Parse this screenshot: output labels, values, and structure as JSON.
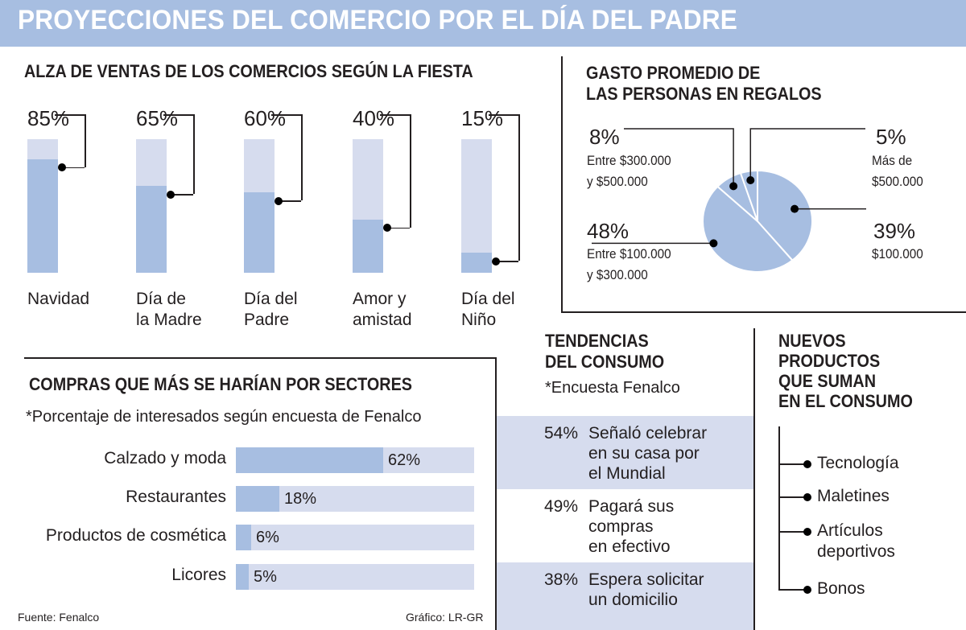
{
  "title": "PROYECCIONES DEL COMERCIO POR EL DÍA DEL PADRE",
  "colors": {
    "bar_light": "#d6dcee",
    "bar_dark": "#a7bee1",
    "title_bg": "#a7bee1",
    "text": "#231f20"
  },
  "chart_data": [
    {
      "type": "bar",
      "title": "ALZA DE VENTAS DE LOS COMERCIOS SEGÚN LA FIESTA",
      "categories": [
        "Navidad",
        "Día de la Madre",
        "Día del Padre",
        "Amor y amistad",
        "Día del Niño"
      ],
      "category_lines": [
        [
          "Navidad"
        ],
        [
          "Día de",
          "la Madre"
        ],
        [
          "Día del",
          "Padre"
        ],
        [
          "Amor y",
          "amistad"
        ],
        [
          "Día del",
          "Niño"
        ]
      ],
      "values": [
        85,
        65,
        60,
        40,
        15
      ],
      "labels": [
        "85%",
        "65%",
        "60%",
        "40%",
        "15%"
      ],
      "unit": "%",
      "ylim": [
        0,
        100
      ]
    },
    {
      "type": "pie",
      "title": "GASTO PROMEDIO DE LAS PERSONAS EN REGALOS",
      "title_lines": [
        "GASTO PROMEDIO DE",
        "LAS PERSONAS EN REGALOS"
      ],
      "slices": [
        {
          "value": 39,
          "pct": "39%",
          "desc_lines": [
            "$100.000"
          ]
        },
        {
          "value": 48,
          "pct": "48%",
          "desc_lines": [
            "Entre $100.000",
            "y $300.000"
          ]
        },
        {
          "value": 8,
          "pct": "8%",
          "desc_lines": [
            "Entre $300.000",
            "y $500.000"
          ]
        },
        {
          "value": 5,
          "pct": "5%",
          "desc_lines": [
            "Más de",
            "$500.000"
          ]
        }
      ]
    },
    {
      "type": "bar",
      "orientation": "horizontal",
      "title": "COMPRAS QUE MÁS SE HARÍAN POR SECTORES",
      "subtitle": "*Porcentaje de interesados según encuesta de Fenalco",
      "categories": [
        "Calzado y moda",
        "Restaurantes",
        "Productos de cosmética",
        "Licores"
      ],
      "values": [
        62,
        18,
        6,
        5
      ],
      "labels": [
        "62%",
        "18%",
        "6%",
        "5%"
      ],
      "xlim": [
        0,
        100
      ]
    }
  ],
  "trends": {
    "title_lines": [
      "TENDENCIAS",
      "DEL CONSUMO"
    ],
    "subtitle": "*Encuesta Fenalco",
    "items": [
      {
        "pct": "54%",
        "lines": [
          "Señaló celebrar",
          "en su casa por",
          "el Mundial"
        ]
      },
      {
        "pct": "49%",
        "lines": [
          "Pagará sus",
          "compras",
          "en efectivo"
        ]
      },
      {
        "pct": "38%",
        "lines": [
          "Espera solicitar",
          "un domicilio"
        ]
      }
    ]
  },
  "products": {
    "title_lines": [
      "NUEVOS",
      "PRODUCTOS",
      "QUE SUMAN",
      "EN EL CONSUMO"
    ],
    "items": [
      [
        "Tecnología"
      ],
      [
        "Maletines"
      ],
      [
        "Artículos",
        "deportivos"
      ],
      [
        "Bonos"
      ]
    ]
  },
  "footer": {
    "source": "Fuente: Fenalco",
    "credit": "Gráfico: LR-GR"
  }
}
